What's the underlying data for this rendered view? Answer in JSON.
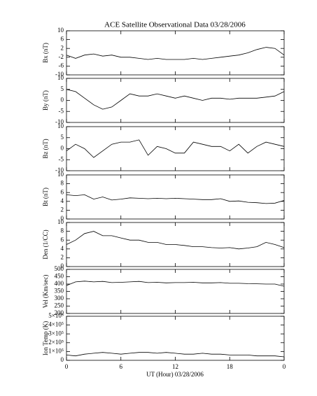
{
  "chart_data": [
    {
      "type": "line",
      "title": "ACE Satellite Observational Data   03/28/2006",
      "y_label": "Bx (nT)",
      "color": "#000000",
      "x": [
        0,
        1,
        2,
        3,
        4,
        5,
        6,
        7,
        8,
        9,
        10,
        11,
        12,
        13,
        14,
        15,
        16,
        17,
        18,
        19,
        20,
        21,
        22,
        23,
        24
      ],
      "values": [
        -1,
        -2.5,
        -1,
        -0.5,
        -1.5,
        -1,
        -2,
        -2,
        -2.5,
        -3,
        -2.5,
        -3,
        -3,
        -3,
        -2.5,
        -3,
        -2.5,
        -2,
        -1.5,
        -1,
        0,
        1.5,
        2.5,
        2,
        -1
      ],
      "ylim": [
        -10,
        10
      ],
      "yticks": [
        -10,
        -6,
        -2,
        2,
        6,
        10
      ]
    },
    {
      "type": "line",
      "y_label": "By (nT)",
      "color": "#000000",
      "x": [
        0,
        1,
        2,
        3,
        4,
        5,
        6,
        7,
        8,
        9,
        10,
        11,
        12,
        13,
        14,
        15,
        16,
        17,
        18,
        19,
        20,
        21,
        22,
        23,
        24
      ],
      "values": [
        5,
        4,
        1,
        -2,
        -4,
        -3,
        0,
        3,
        2,
        2,
        3,
        2,
        1,
        2,
        1,
        0,
        1,
        1,
        0.5,
        1,
        1,
        1,
        1.5,
        2,
        4
      ],
      "ylim": [
        -10,
        10
      ],
      "yticks": [
        -10,
        -5,
        0,
        5,
        10
      ]
    },
    {
      "type": "line",
      "y_label": "Bz (nT)",
      "color": "#000000",
      "x": [
        0,
        1,
        2,
        3,
        4,
        5,
        6,
        7,
        8,
        9,
        10,
        11,
        12,
        13,
        14,
        15,
        16,
        17,
        18,
        19,
        20,
        21,
        22,
        23,
        24
      ],
      "values": [
        -1,
        2,
        0,
        -4,
        -1,
        2,
        3,
        3,
        4,
        -3,
        1,
        0,
        -2,
        -2,
        3,
        2,
        1,
        1,
        -1,
        2,
        -2,
        1,
        3,
        2,
        1
      ],
      "ylim": [
        -10,
        10
      ],
      "yticks": [
        -10,
        -5,
        0,
        5,
        10
      ]
    },
    {
      "type": "line",
      "y_label": "Bt (nT)",
      "color": "#000000",
      "x": [
        0,
        1,
        2,
        3,
        4,
        5,
        6,
        7,
        8,
        9,
        10,
        11,
        12,
        13,
        14,
        15,
        16,
        17,
        18,
        19,
        20,
        21,
        22,
        23,
        24
      ],
      "values": [
        5.5,
        5.3,
        5.5,
        4.5,
        5,
        4.3,
        4.5,
        4.8,
        4.7,
        4.6,
        4.7,
        4.6,
        4.7,
        4.6,
        4.5,
        4.4,
        4.4,
        4.6,
        4,
        4.1,
        3.8,
        3.7,
        3.5,
        3.6,
        4.2
      ],
      "ylim": [
        0,
        10
      ],
      "yticks": [
        0,
        2,
        4,
        6,
        8,
        10
      ]
    },
    {
      "type": "line",
      "y_label": "Den (1/CC)",
      "color": "#000000",
      "x": [
        0,
        1,
        2,
        3,
        4,
        5,
        6,
        7,
        8,
        9,
        10,
        11,
        12,
        13,
        14,
        15,
        16,
        17,
        18,
        19,
        20,
        21,
        22,
        23,
        24
      ],
      "values": [
        5,
        6,
        7.5,
        8,
        7,
        7,
        6.5,
        6,
        6,
        5.5,
        5.5,
        5,
        5,
        4.8,
        4.5,
        4.5,
        4.3,
        4.2,
        4.3,
        4,
        4.2,
        4.5,
        5.5,
        5,
        4.3
      ],
      "ylim": [
        0,
        10
      ],
      "yticks": [
        0,
        2,
        4,
        6,
        8,
        10
      ]
    },
    {
      "type": "line",
      "y_label": "Vel (Km/sec)",
      "color": "#000000",
      "x": [
        0,
        1,
        2,
        3,
        4,
        5,
        6,
        7,
        8,
        9,
        10,
        11,
        12,
        13,
        14,
        15,
        16,
        17,
        18,
        19,
        20,
        21,
        22,
        23,
        24
      ],
      "values": [
        390,
        415,
        420,
        415,
        418,
        410,
        412,
        415,
        418,
        410,
        412,
        408,
        410,
        410,
        412,
        408,
        408,
        410,
        405,
        405,
        403,
        402,
        400,
        400,
        385
      ],
      "ylim": [
        200,
        500
      ],
      "yticks": [
        200,
        250,
        300,
        350,
        400,
        450,
        500
      ]
    },
    {
      "type": "line",
      "y_label": "Ion Temp (K)",
      "color": "#000000",
      "x": [
        0,
        1,
        2,
        3,
        4,
        5,
        6,
        7,
        8,
        9,
        10,
        11,
        12,
        13,
        14,
        15,
        16,
        17,
        18,
        19,
        20,
        21,
        22,
        23,
        24
      ],
      "values": [
        60000,
        50000,
        70000,
        80000,
        90000,
        80000,
        70000,
        80000,
        90000,
        90000,
        80000,
        90000,
        80000,
        70000,
        70000,
        80000,
        70000,
        70000,
        60000,
        60000,
        60000,
        50000,
        50000,
        50000,
        40000
      ],
      "ylim": [
        0,
        500000
      ],
      "yticks": [
        0,
        {
          "value": 100000,
          "label": "1×10⁵"
        },
        {
          "value": 200000,
          "label": "2×10⁵"
        },
        {
          "value": 300000,
          "label": "3×10⁵"
        },
        {
          "value": 400000,
          "label": "4×10⁵"
        },
        {
          "value": 500000,
          "label": "5×10⁵"
        }
      ],
      "xlim": [
        0,
        24
      ],
      "xticks": [
        0,
        6,
        12,
        18,
        {
          "value": 24,
          "label": "0"
        }
      ],
      "x_label": "UT (Hour)   03/28/2006"
    }
  ]
}
